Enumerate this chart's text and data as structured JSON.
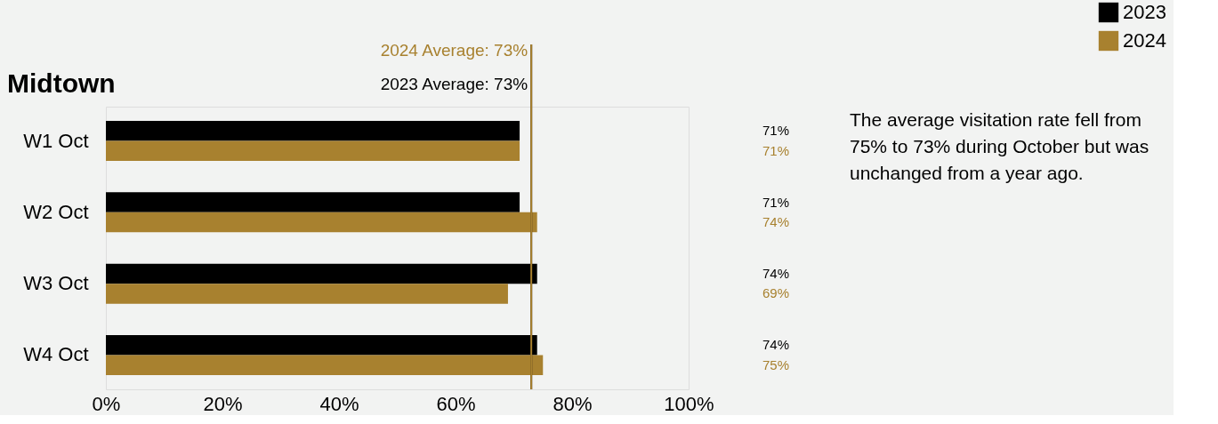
{
  "chart_data": {
    "type": "bar",
    "orientation": "horizontal",
    "title": "Midtown",
    "categories": [
      "W1 Oct",
      "W2 Oct",
      "W3 Oct",
      "W4 Oct"
    ],
    "series": [
      {
        "name": "2023",
        "color": "#000000",
        "values": [
          71,
          71,
          74,
          74
        ]
      },
      {
        "name": "2024",
        "color": "#a8812f",
        "values": [
          71,
          74,
          69,
          75
        ]
      }
    ],
    "xlim": [
      0,
      100
    ],
    "xticks": [
      {
        "value": 0,
        "label": "0%"
      },
      {
        "value": 20,
        "label": "20%"
      },
      {
        "value": 40,
        "label": "40%"
      },
      {
        "value": 60,
        "label": "60%"
      },
      {
        "value": 80,
        "label": "80%"
      },
      {
        "value": 100,
        "label": "100%"
      }
    ],
    "value_labels": [
      [
        "71%",
        "71%",
        "74%",
        "74%"
      ],
      [
        "71%",
        "74%",
        "69%",
        "75%"
      ]
    ],
    "ref_lines": [
      {
        "axis": "x",
        "value": 73,
        "label": "2023 Average: 73%",
        "color": "#000000"
      },
      {
        "axis": "x",
        "value": 73,
        "label": "2024 Average: 73%",
        "color": "#a8812f"
      }
    ],
    "annotations": [
      "The average visitation rate fell from 75% to 73% during October but was unchanged from a year ago."
    ],
    "legend": "top right",
    "grid": false
  }
}
